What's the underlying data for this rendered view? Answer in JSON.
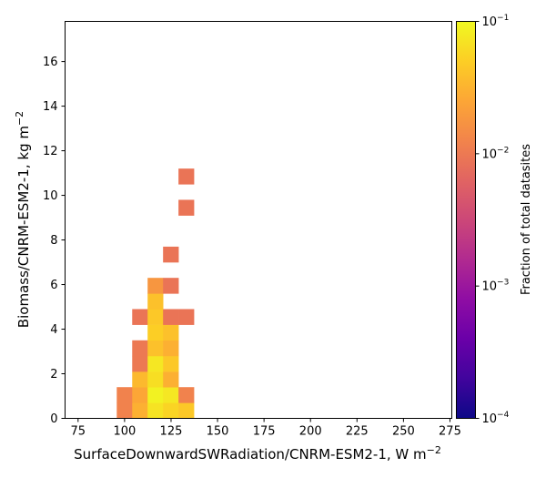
{
  "chart_data": {
    "type": "heatmap",
    "title": "",
    "xlabel_main": "SurfaceDownwardSWRadiation/CNRM-ESM2-1,  W m",
    "xlabel_sup": "−2",
    "ylabel_main": "Biomass/CNRM-ESM2-1,  kg m",
    "ylabel_sup": "−2",
    "xlim": [
      68,
      276
    ],
    "ylim": [
      0,
      17.8
    ],
    "x_ticks": [
      75,
      100,
      125,
      150,
      175,
      200,
      225,
      250,
      275
    ],
    "y_ticks": [
      0,
      2,
      4,
      6,
      8,
      10,
      12,
      14,
      16
    ],
    "bin_width_x": 8.3,
    "bin_height_y": 0.7,
    "colorbar": {
      "label": "Fraction of total datasites",
      "scale": "log",
      "range": [
        0.0001,
        0.1
      ],
      "colormap": "plasma",
      "ticks": [
        {
          "value": 0.1,
          "base": "10",
          "exp": "−1"
        },
        {
          "value": 0.01,
          "base": "10",
          "exp": "−2"
        },
        {
          "value": 0.001,
          "base": "10",
          "exp": "−3"
        },
        {
          "value": 0.0001,
          "base": "10",
          "exp": "−4"
        }
      ]
    },
    "cells": [
      {
        "x0": 95.8,
        "y0": 0.0,
        "value": 0.012
      },
      {
        "x0": 104.1,
        "y0": 0.0,
        "value": 0.03
      },
      {
        "x0": 112.4,
        "y0": 0.0,
        "value": 0.07
      },
      {
        "x0": 120.7,
        "y0": 0.0,
        "value": 0.055
      },
      {
        "x0": 129.0,
        "y0": 0.0,
        "value": 0.045
      },
      {
        "x0": 95.8,
        "y0": 0.7,
        "value": 0.012
      },
      {
        "x0": 104.1,
        "y0": 0.7,
        "value": 0.025
      },
      {
        "x0": 112.4,
        "y0": 0.7,
        "value": 0.09
      },
      {
        "x0": 120.7,
        "y0": 0.7,
        "value": 0.075
      },
      {
        "x0": 129.0,
        "y0": 0.7,
        "value": 0.012
      },
      {
        "x0": 104.1,
        "y0": 1.4,
        "value": 0.035
      },
      {
        "x0": 112.4,
        "y0": 1.4,
        "value": 0.065
      },
      {
        "x0": 120.7,
        "y0": 1.4,
        "value": 0.03
      },
      {
        "x0": 104.1,
        "y0": 2.1,
        "value": 0.01
      },
      {
        "x0": 112.4,
        "y0": 2.1,
        "value": 0.075
      },
      {
        "x0": 120.7,
        "y0": 2.1,
        "value": 0.045
      },
      {
        "x0": 104.1,
        "y0": 2.8,
        "value": 0.01
      },
      {
        "x0": 112.4,
        "y0": 2.8,
        "value": 0.04
      },
      {
        "x0": 120.7,
        "y0": 2.8,
        "value": 0.03
      },
      {
        "x0": 112.4,
        "y0": 3.5,
        "value": 0.05
      },
      {
        "x0": 120.7,
        "y0": 3.5,
        "value": 0.04
      },
      {
        "x0": 104.1,
        "y0": 4.2,
        "value": 0.009
      },
      {
        "x0": 112.4,
        "y0": 4.2,
        "value": 0.045
      },
      {
        "x0": 120.7,
        "y0": 4.2,
        "value": 0.009
      },
      {
        "x0": 129.0,
        "y0": 4.2,
        "value": 0.009
      },
      {
        "x0": 112.4,
        "y0": 4.9,
        "value": 0.04
      },
      {
        "x0": 112.4,
        "y0": 5.6,
        "value": 0.018
      },
      {
        "x0": 120.7,
        "y0": 5.6,
        "value": 0.009
      },
      {
        "x0": 120.7,
        "y0": 7.0,
        "value": 0.009
      },
      {
        "x0": 129.0,
        "y0": 9.1,
        "value": 0.009
      },
      {
        "x0": 129.0,
        "y0": 10.5,
        "value": 0.009
      }
    ]
  }
}
